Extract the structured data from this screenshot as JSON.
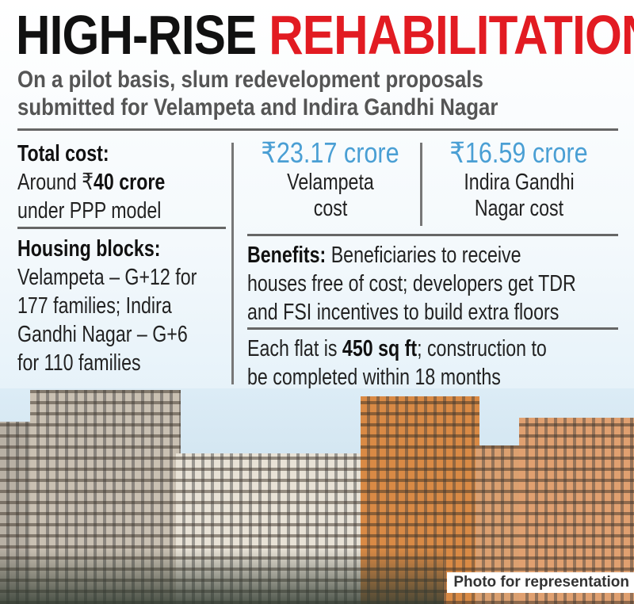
{
  "title": {
    "part1": "HIGH-RISE",
    "part2": "REHABILITATION",
    "accent_color": "#e21b22"
  },
  "subtitle": {
    "lines": [
      "On a pilot basis, slum redevelopment proposals",
      "submitted for Velampeta and Indira Gandhi Nagar"
    ]
  },
  "total_cost": {
    "heading": "Total cost:",
    "line1_pre": "Around ₹",
    "line1_bold": "40 crore",
    "line2": "under PPP model"
  },
  "housing_blocks": {
    "heading": "Housing blocks:",
    "lines": [
      "Velampeta – G+12 for",
      "177 families; Indira",
      "Gandhi Nagar – G+6",
      "for 110 families"
    ]
  },
  "velampeta": {
    "amount": "₹23.17 crore",
    "label_lines": [
      "Velampeta",
      "cost"
    ]
  },
  "indira": {
    "amount": "₹16.59 crore",
    "label_lines": [
      "Indira Gandhi",
      "Nagar cost"
    ]
  },
  "amount_color": "#4a9fd4",
  "benefits": {
    "heading": "Benefits:",
    "line1": " Beneficiaries to receive",
    "line2": "houses free of cost; developers get TDR",
    "line3": "and FSI incentives to build extra floors"
  },
  "flat": {
    "pre": "Each flat is ",
    "bold": "450 sq ft",
    "post": "; construction to",
    "line2": "be completed within 18 months"
  },
  "photo": {
    "caption": "Photo for representation"
  }
}
